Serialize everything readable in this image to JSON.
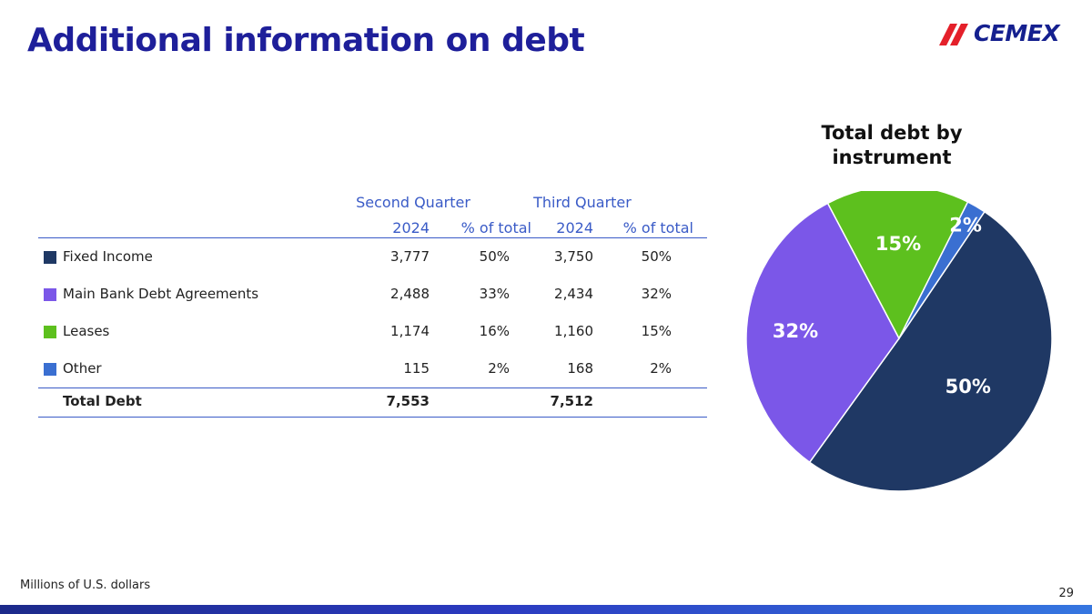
{
  "header": {
    "title": "Additional information on debt",
    "logo_text": "CEMEX"
  },
  "table": {
    "groups": [
      "Second Quarter",
      "Third Quarter"
    ],
    "subheaders": [
      "2024",
      "% of total",
      "2024",
      "% of total"
    ],
    "rows": [
      {
        "label": "Fixed Income",
        "color": "#1f3864",
        "q2": "3,777",
        "q2_pct": "50%",
        "q3": "3,750",
        "q3_pct": "50%"
      },
      {
        "label": "Main Bank Debt Agreements",
        "color": "#7b57e8",
        "q2": "2,488",
        "q2_pct": "33%",
        "q3": "2,434",
        "q3_pct": "32%"
      },
      {
        "label": "Leases",
        "color": "#5dc01e",
        "q2": "1,174",
        "q2_pct": "16%",
        "q3": "1,160",
        "q3_pct": "15%"
      },
      {
        "label": "Other",
        "color": "#3a6fd1",
        "q2": "115",
        "q2_pct": "2%",
        "q3": "168",
        "q3_pct": "2%"
      }
    ],
    "total": {
      "label": "Total Debt",
      "q2": "7,553",
      "q3": "7,512"
    }
  },
  "chart_data": {
    "type": "pie",
    "title": "Total debt by instrument",
    "slices": [
      {
        "label": "Fixed Income",
        "value": 50,
        "display": "50%",
        "color": "#1f3864",
        "label_color": "#ffffff"
      },
      {
        "label": "Main Bank Debt Agreements",
        "value": 32,
        "display": "32%",
        "color": "#7b57e8",
        "label_color": "#ffffff"
      },
      {
        "label": "Leases",
        "value": 15,
        "display": "15%",
        "color": "#5dc01e",
        "label_color": "#ffffff"
      },
      {
        "label": "Other",
        "value": 2,
        "display": "2%",
        "color": "#3a6fd1",
        "label_color": "#ffffff"
      }
    ]
  },
  "footer": {
    "note": "Millions of U.S. dollars",
    "page": "29"
  }
}
